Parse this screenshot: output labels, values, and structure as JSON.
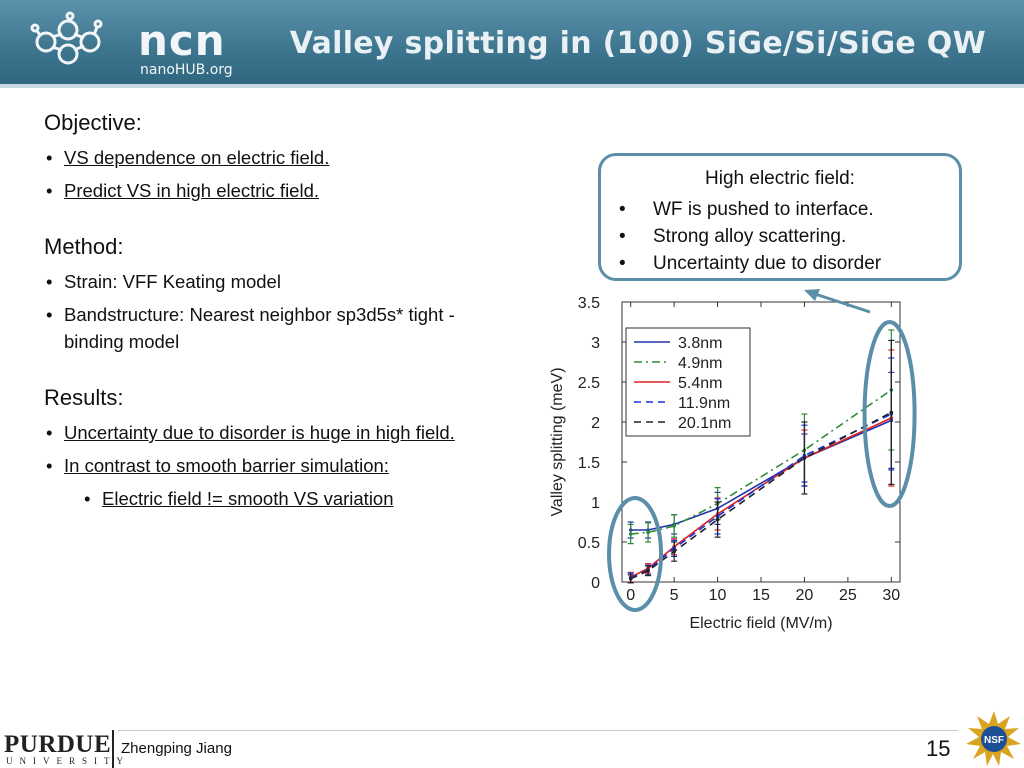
{
  "header": {
    "logo_text": "ncn",
    "logo_subtext": "nanoHUB.org",
    "title": "Valley splitting in (100) SiGe/Si/SiGe QW"
  },
  "objective": {
    "heading": "Objective:",
    "items": [
      "VS dependence on electric field.",
      "Predict VS in high electric field."
    ]
  },
  "method": {
    "heading": "Method:",
    "items": [
      "Strain: VFF Keating model",
      "Bandstructure: Nearest neighbor sp3d5s* tight - binding model"
    ]
  },
  "results": {
    "heading": "Results:",
    "items": [
      "Uncertainty due to disorder is huge in high field.",
      "In contrast to smooth barrier simulation:"
    ],
    "subitems": [
      "Electric field != smooth VS variation"
    ]
  },
  "callout": {
    "title": "High electric field:",
    "items": [
      "WF is pushed to interface.",
      "Strong alloy scattering.",
      "Uncertainty due to disorder"
    ]
  },
  "footer": {
    "university": "PURDUE",
    "university_sub": "UNIVERSITY",
    "author": "Zhengping Jiang",
    "page_number": "15",
    "nsf_logo_text": "NSF"
  },
  "chart_data": {
    "type": "line",
    "xlabel": "Electric field (MV/m)",
    "ylabel": "Valley splitting (meV)",
    "xlim": [
      -1,
      31
    ],
    "ylim": [
      0,
      3.5
    ],
    "xticks": [
      0,
      5,
      10,
      15,
      20,
      25,
      30
    ],
    "yticks": [
      0,
      0.5,
      1,
      1.5,
      2,
      2.5,
      3,
      3.5
    ],
    "ytick_labels": [
      "0",
      "0.5",
      "1",
      "1.5",
      "2",
      "2.5",
      "3",
      "3.5"
    ],
    "legend_position": "top-left",
    "series": [
      {
        "name": "3.8nm",
        "color": "#2233aa",
        "dash": "solid",
        "x": [
          0,
          2,
          5,
          10,
          20,
          30
        ],
        "y": [
          0.65,
          0.65,
          0.72,
          0.92,
          1.55,
          2.02
        ],
        "err": [
          0.1,
          0.1,
          0.12,
          0.2,
          0.3,
          0.6
        ]
      },
      {
        "name": "4.9nm",
        "color": "#2e8b3a",
        "dash": "dashdot",
        "x": [
          0,
          2,
          5,
          10,
          20,
          30
        ],
        "y": [
          0.6,
          0.62,
          0.7,
          0.98,
          1.65,
          2.4
        ],
        "err": [
          0.12,
          0.12,
          0.14,
          0.2,
          0.45,
          0.75
        ]
      },
      {
        "name": "5.4nm",
        "color": "#dd2222",
        "dash": "solid",
        "x": [
          0,
          2,
          5,
          10,
          20,
          30
        ],
        "y": [
          0.06,
          0.17,
          0.44,
          0.85,
          1.55,
          2.05
        ],
        "err": [
          0.06,
          0.06,
          0.1,
          0.2,
          0.35,
          0.85
        ]
      },
      {
        "name": "11.9nm",
        "color": "#1133dd",
        "dash": "dashed",
        "x": [
          0,
          2,
          5,
          10,
          20,
          30
        ],
        "y": [
          0.05,
          0.15,
          0.42,
          0.82,
          1.58,
          2.1
        ],
        "err": [
          0.06,
          0.06,
          0.1,
          0.22,
          0.38,
          0.7
        ]
      },
      {
        "name": "20.1nm",
        "color": "#222222",
        "dash": "dashed",
        "x": [
          0,
          2,
          5,
          10,
          20,
          30
        ],
        "y": [
          0.04,
          0.14,
          0.38,
          0.78,
          1.55,
          2.12
        ],
        "err": [
          0.05,
          0.06,
          0.12,
          0.22,
          0.45,
          0.9
        ]
      }
    ],
    "circle_color": "#5b8ea8"
  }
}
